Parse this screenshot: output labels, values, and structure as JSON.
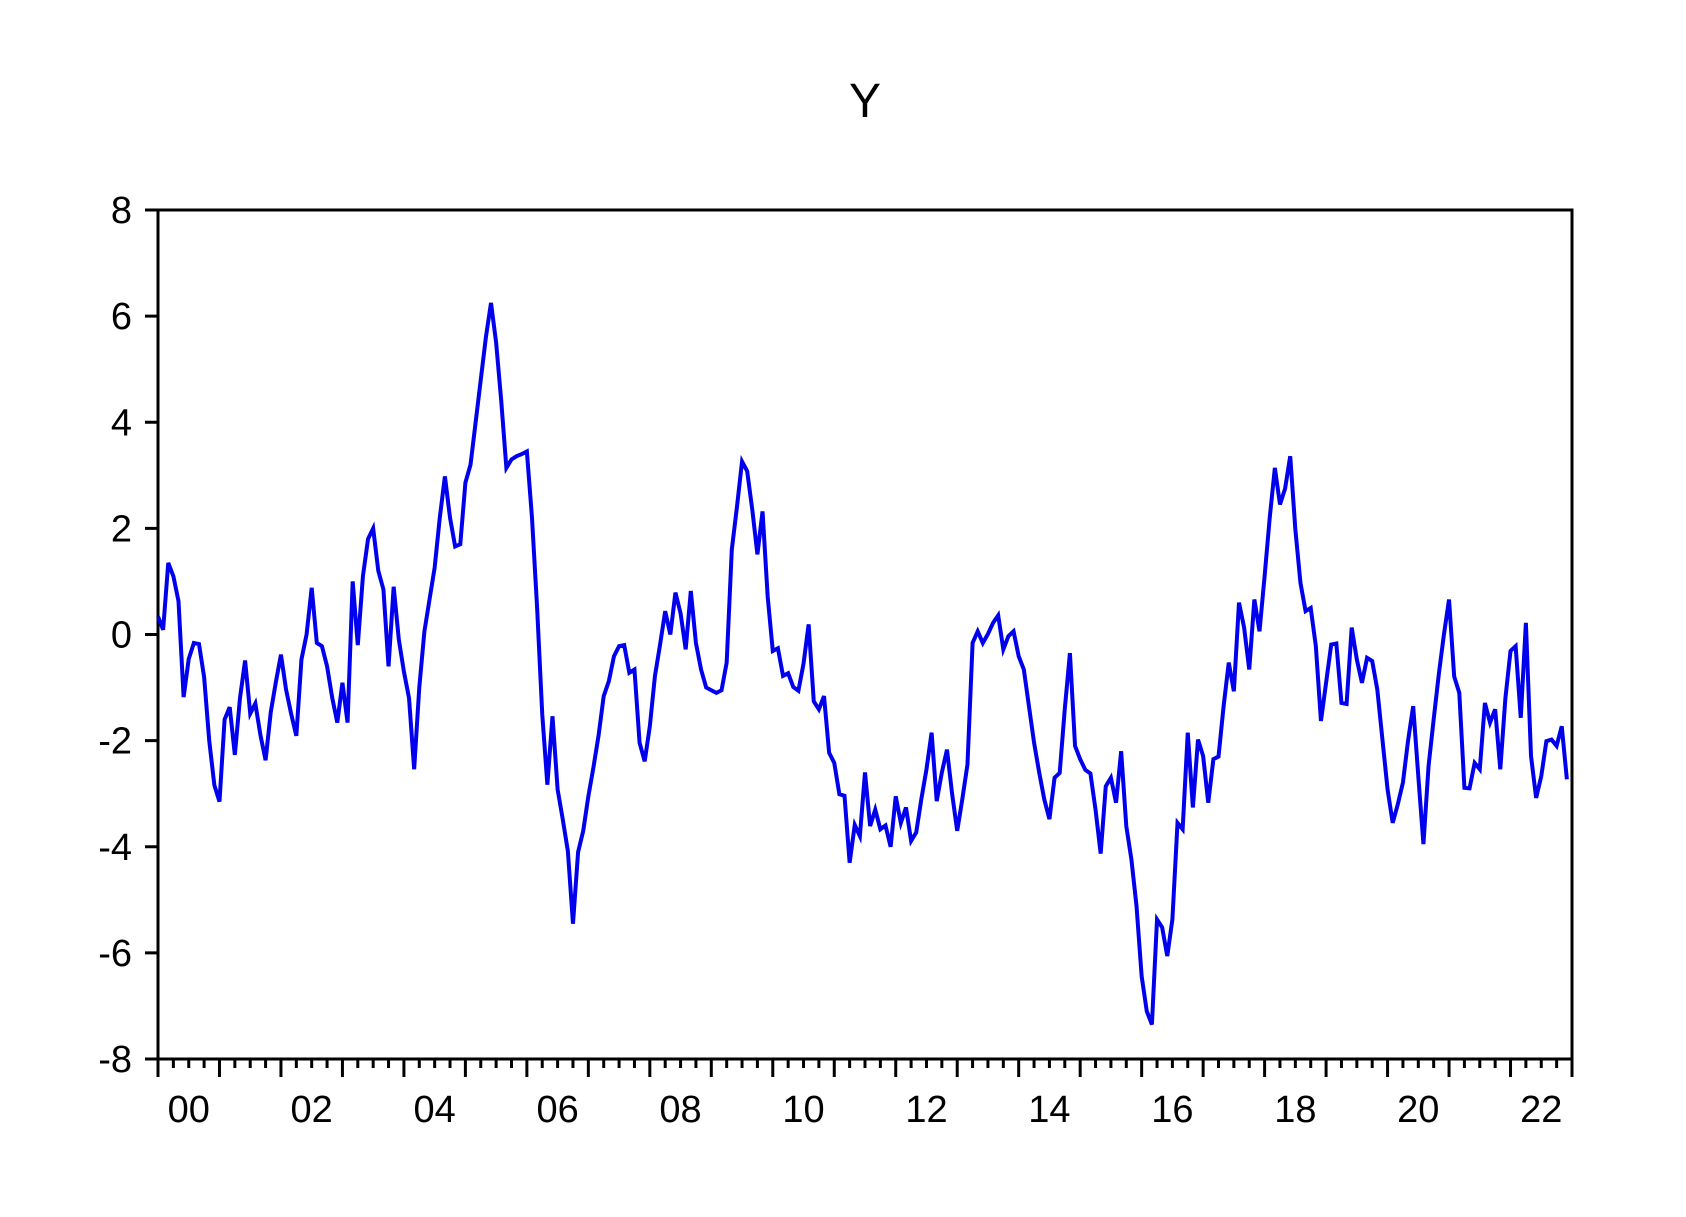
{
  "chart_data": {
    "type": "line",
    "title": "Y",
    "series_name": "Y",
    "frequency": "monthly",
    "start_period": "2000M01",
    "end_period": "2022M12",
    "xlabel": "",
    "ylabel": "",
    "ylim": [
      -8,
      8
    ],
    "y_ticks": [
      8,
      6,
      4,
      2,
      0,
      -2,
      -4,
      -6,
      -8
    ],
    "y_tick_labels": [
      "8",
      "6",
      "4",
      "2",
      "0",
      "-2",
      "-4",
      "-6",
      "-8"
    ],
    "x_label_years": [
      2000,
      2002,
      2004,
      2006,
      2008,
      2010,
      2012,
      2014,
      2016,
      2018,
      2020,
      2022
    ],
    "x_tick_labels": [
      "00",
      "02",
      "04",
      "06",
      "08",
      "10",
      "12",
      "14",
      "16",
      "18",
      "20",
      "22"
    ],
    "x_axis_start_year": 2000,
    "x_axis_end_year": 2023,
    "minor_ticks": "quarterly",
    "grid": false,
    "legend_position": "none",
    "line_color": "#0000EE",
    "frame_color": "#000000",
    "background_color": "#ffffff",
    "values": [
      0.34,
      0.09,
      1.35,
      1.1,
      0.63,
      -1.18,
      -0.46,
      -0.16,
      -0.18,
      -0.8,
      -2.0,
      -2.84,
      -3.15,
      -1.6,
      -1.37,
      -2.27,
      -1.2,
      -0.49,
      -1.49,
      -1.3,
      -1.9,
      -2.37,
      -1.47,
      -0.9,
      -0.38,
      -1.04,
      -1.5,
      -1.91,
      -0.47,
      0.0,
      0.88,
      -0.16,
      -0.22,
      -0.6,
      -1.19,
      -1.66,
      -0.91,
      -1.66,
      1.0,
      -0.2,
      1.1,
      1.8,
      2.0,
      1.2,
      0.85,
      -0.6,
      0.9,
      -0.09,
      -0.7,
      -1.2,
      -2.54,
      -1.0,
      0.06,
      0.66,
      1.26,
      2.2,
      2.98,
      2.2,
      1.66,
      1.7,
      2.86,
      3.2,
      4.0,
      4.8,
      5.6,
      6.25,
      5.5,
      4.4,
      3.14,
      3.3,
      3.36,
      3.4,
      3.45,
      2.2,
      0.5,
      -1.5,
      -2.83,
      -1.54,
      -2.92,
      -3.48,
      -4.08,
      -5.45,
      -4.1,
      -3.7,
      -3.05,
      -2.5,
      -1.9,
      -1.16,
      -0.88,
      -0.41,
      -0.22,
      -0.2,
      -0.72,
      -0.66,
      -2.04,
      -2.39,
      -1.73,
      -0.78,
      -0.19,
      0.44,
      0.0,
      0.79,
      0.4,
      -0.28,
      0.82,
      -0.16,
      -0.66,
      -1.0,
      -1.05,
      -1.1,
      -1.05,
      -0.53,
      1.6,
      2.4,
      3.26,
      3.08,
      2.35,
      1.51,
      2.32,
      0.72,
      -0.31,
      -0.26,
      -0.78,
      -0.73,
      -0.99,
      -1.06,
      -0.55,
      0.19,
      -1.26,
      -1.41,
      -1.16,
      -2.23,
      -2.42,
      -3.01,
      -3.04,
      -4.3,
      -3.59,
      -3.8,
      -2.6,
      -3.61,
      -3.3,
      -3.67,
      -3.6,
      -4.0,
      -3.05,
      -3.55,
      -3.26,
      -3.89,
      -3.73,
      -3.1,
      -2.54,
      -1.85,
      -3.14,
      -2.6,
      -2.17,
      -3.0,
      -3.7,
      -3.1,
      -2.45,
      -0.16,
      0.06,
      -0.16,
      0.01,
      0.22,
      0.36,
      -0.28,
      -0.03,
      0.06,
      -0.41,
      -0.66,
      -1.35,
      -2.04,
      -2.6,
      -3.11,
      -3.48,
      -2.7,
      -2.61,
      -1.4,
      -0.35,
      -2.1,
      -2.35,
      -2.55,
      -2.62,
      -3.3,
      -4.13,
      -2.86,
      -2.7,
      -3.17,
      -2.2,
      -3.61,
      -4.24,
      -5.12,
      -6.44,
      -7.1,
      -7.35,
      -5.37,
      -5.52,
      -6.06,
      -5.37,
      -3.55,
      -3.67,
      -1.85,
      -3.26,
      -1.98,
      -2.29,
      -3.17,
      -2.35,
      -2.3,
      -1.35,
      -0.53,
      -1.07,
      0.6,
      0.13,
      -0.66,
      0.66,
      0.06,
      1.1,
      2.2,
      3.14,
      2.45,
      2.75,
      3.36,
      1.98,
      0.97,
      0.44,
      0.5,
      -0.22,
      -1.63,
      -0.91,
      -0.19,
      -0.17,
      -1.29,
      -1.31,
      0.13,
      -0.47,
      -0.91,
      -0.44,
      -0.5,
      -1.04,
      -1.98,
      -2.92,
      -3.55,
      -3.2,
      -2.79,
      -2.0,
      -1.35,
      -2.67,
      -3.95,
      -2.48,
      -1.6,
      -0.75,
      0.0,
      0.66,
      -0.79,
      -1.1,
      -2.89,
      -2.9,
      -2.42,
      -2.54,
      -1.29,
      -1.66,
      -1.41,
      -2.54,
      -1.2,
      -0.31,
      -0.22,
      -1.57,
      0.22,
      -2.29,
      -3.08,
      -2.67,
      -2.01,
      -1.98,
      -2.1,
      -1.73,
      -2.73
    ]
  }
}
